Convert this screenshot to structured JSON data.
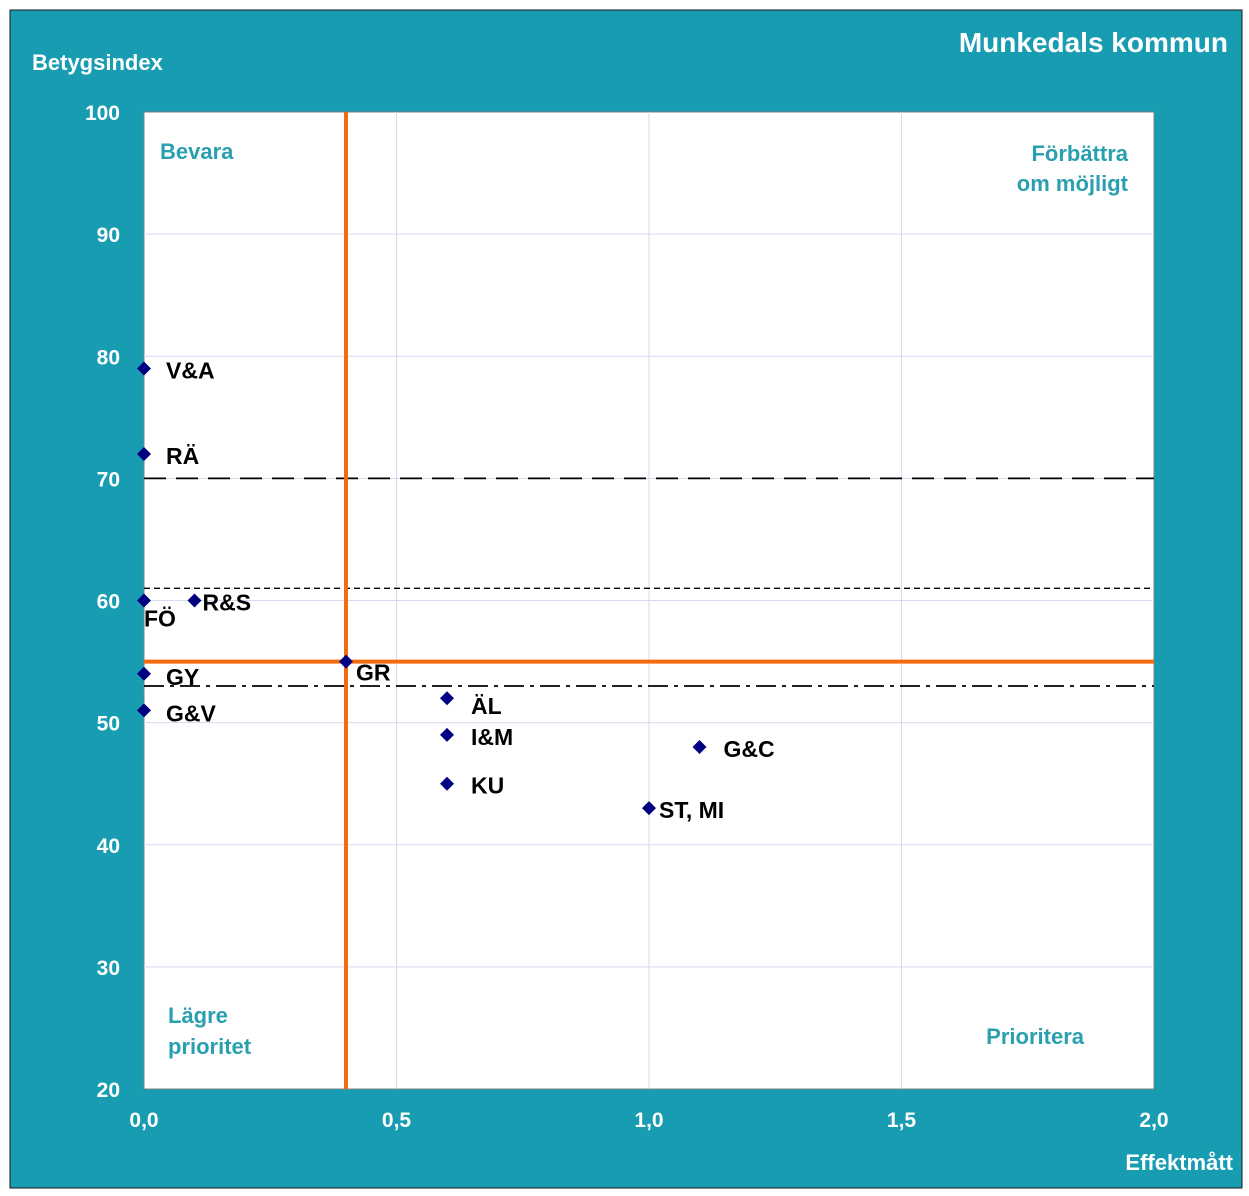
{
  "colors": {
    "background": "#179cb1",
    "plot_area": "#ffffff",
    "quadrant_label": "#2a9fb0",
    "marker": "#000080",
    "threshold": "#f26b0f",
    "grid": "#d9d9f0"
  },
  "chart_data": {
    "type": "scatter",
    "title": "Munkedals kommun",
    "xlabel": "Effektmått",
    "ylabel": "Betygsindex",
    "xlim": [
      0,
      2
    ],
    "ylim": [
      20,
      100
    ],
    "xticks": [
      "0,0",
      "0,5",
      "1,0",
      "1,5",
      "2,0"
    ],
    "yticks": [
      "20",
      "30",
      "40",
      "50",
      "60",
      "70",
      "80",
      "90",
      "100"
    ],
    "grid": true,
    "points": [
      {
        "label": "V&A",
        "x": 0.0,
        "y": 79
      },
      {
        "label": "RÄ",
        "x": 0.0,
        "y": 72
      },
      {
        "label": "FÖ",
        "x": 0.0,
        "y": 60
      },
      {
        "label": "R&S",
        "x": 0.1,
        "y": 60
      },
      {
        "label": "GY",
        "x": 0.0,
        "y": 54
      },
      {
        "label": "G&V",
        "x": 0.0,
        "y": 51
      },
      {
        "label": "GR",
        "x": 0.4,
        "y": 55
      },
      {
        "label": "ÄL",
        "x": 0.6,
        "y": 52
      },
      {
        "label": "I&M",
        "x": 0.6,
        "y": 49
      },
      {
        "label": "KU",
        "x": 0.6,
        "y": 45
      },
      {
        "label": "G&C",
        "x": 1.1,
        "y": 48
      },
      {
        "label": "ST, MI",
        "x": 1.0,
        "y": 43
      }
    ],
    "threshold_lines": {
      "x": 0.4,
      "y": 55
    },
    "reference_lines": [
      {
        "y": 70,
        "style": "long-dash"
      },
      {
        "y": 61,
        "style": "short-dash"
      },
      {
        "y": 53,
        "style": "dash-dot"
      }
    ],
    "quadrant_labels": {
      "top_left": [
        "Bevara"
      ],
      "top_right": [
        "Förbättra",
        "om möjligt"
      ],
      "bottom_left": [
        "Lägre",
        "prioritet"
      ],
      "bottom_right": [
        "Prioritera"
      ]
    }
  }
}
